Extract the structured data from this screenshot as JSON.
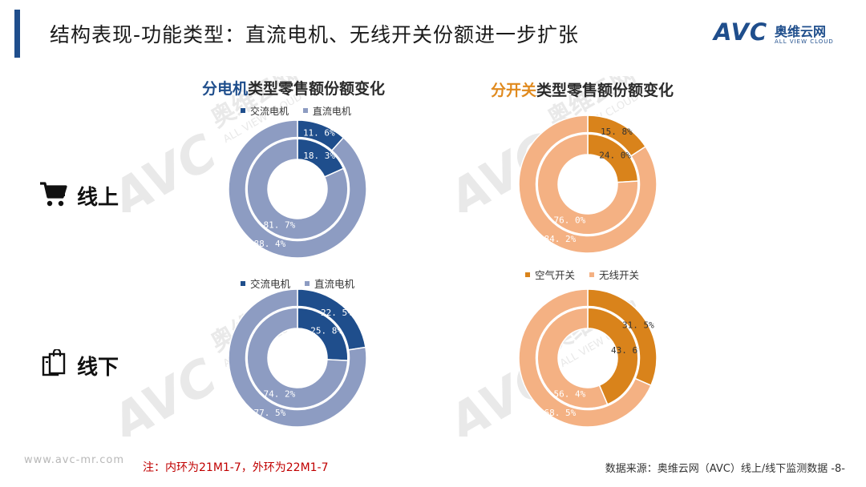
{
  "header": {
    "title": "结构表现-功能类型：直流电机、无线开关份额进一步扩张",
    "logo_text": "AVC",
    "logo_cn": "奥维云网",
    "logo_sub": "ALL VIEW CLOUD"
  },
  "watermark": {
    "text": "AVC",
    "cn": "奥维云网",
    "sub": "ALL VIEW CLOUD"
  },
  "channels": {
    "online": "线上",
    "offline": "线下"
  },
  "colors": {
    "ac_motor": "#1f4e8c",
    "dc_motor": "#8d9cc2",
    "air_switch": "#d9831b",
    "wireless_switch": "#f4b183"
  },
  "titles": {
    "motor_hl": "分电机",
    "motor_rest": "类型零售额份额变化",
    "switch_hl": "分开关",
    "switch_rest": "类型零售额份额变化"
  },
  "legends": {
    "motor_online": [
      "交流电机",
      "直流电机"
    ],
    "motor_offline": [
      "交流电机",
      "直流电机"
    ],
    "switch_offline": [
      "空气开关",
      "无线开关"
    ]
  },
  "chart_data": [
    {
      "type": "pie",
      "subtype": "nested-donut",
      "title": "分电机类型零售额份额变化",
      "channel": "线上",
      "categories": [
        "交流电机",
        "直流电机"
      ],
      "series": [
        {
          "name": "内环",
          "values": [
            18.3,
            81.7
          ],
          "labels": [
            "18. 3%",
            "81. 7%"
          ]
        },
        {
          "name": "外环",
          "values": [
            11.6,
            88.4
          ],
          "labels": [
            "11. 6%",
            "88. 4%"
          ]
        }
      ]
    },
    {
      "type": "pie",
      "subtype": "nested-donut",
      "title": "分开关类型零售额份额变化",
      "channel": "线上",
      "categories": [
        "空气开关",
        "无线开关"
      ],
      "series": [
        {
          "name": "内环",
          "values": [
            24.0,
            76.0
          ],
          "labels": [
            "24. 0%",
            "76. 0%"
          ]
        },
        {
          "name": "外环",
          "values": [
            15.8,
            84.2
          ],
          "labels": [
            "15. 8%",
            "84. 2%"
          ]
        }
      ]
    },
    {
      "type": "pie",
      "subtype": "nested-donut",
      "title": "分电机类型零售额份额变化",
      "channel": "线下",
      "categories": [
        "交流电机",
        "直流电机"
      ],
      "series": [
        {
          "name": "内环",
          "values": [
            25.8,
            74.2
          ],
          "labels": [
            "25. 8%",
            "74. 2%"
          ]
        },
        {
          "name": "外环",
          "values": [
            22.5,
            77.5
          ],
          "labels": [
            "22. 5%",
            "77. 5%"
          ]
        }
      ]
    },
    {
      "type": "pie",
      "subtype": "nested-donut",
      "title": "分开关类型零售额份额变化",
      "channel": "线下",
      "categories": [
        "空气开关",
        "无线开关"
      ],
      "series": [
        {
          "name": "内环",
          "values": [
            43.6,
            56.4
          ],
          "labels": [
            "43. 6%",
            "56. 4%"
          ]
        },
        {
          "name": "外环",
          "values": [
            31.5,
            68.5
          ],
          "labels": [
            "31. 5%",
            "68. 5%"
          ]
        }
      ]
    }
  ],
  "footer": {
    "note": "注：内环为21M1-7，外环为22M1-7",
    "site": "www.avc-mr.com",
    "source": "数据来源：奥维云网（AVC）线上/线下监测数据 -8-"
  }
}
